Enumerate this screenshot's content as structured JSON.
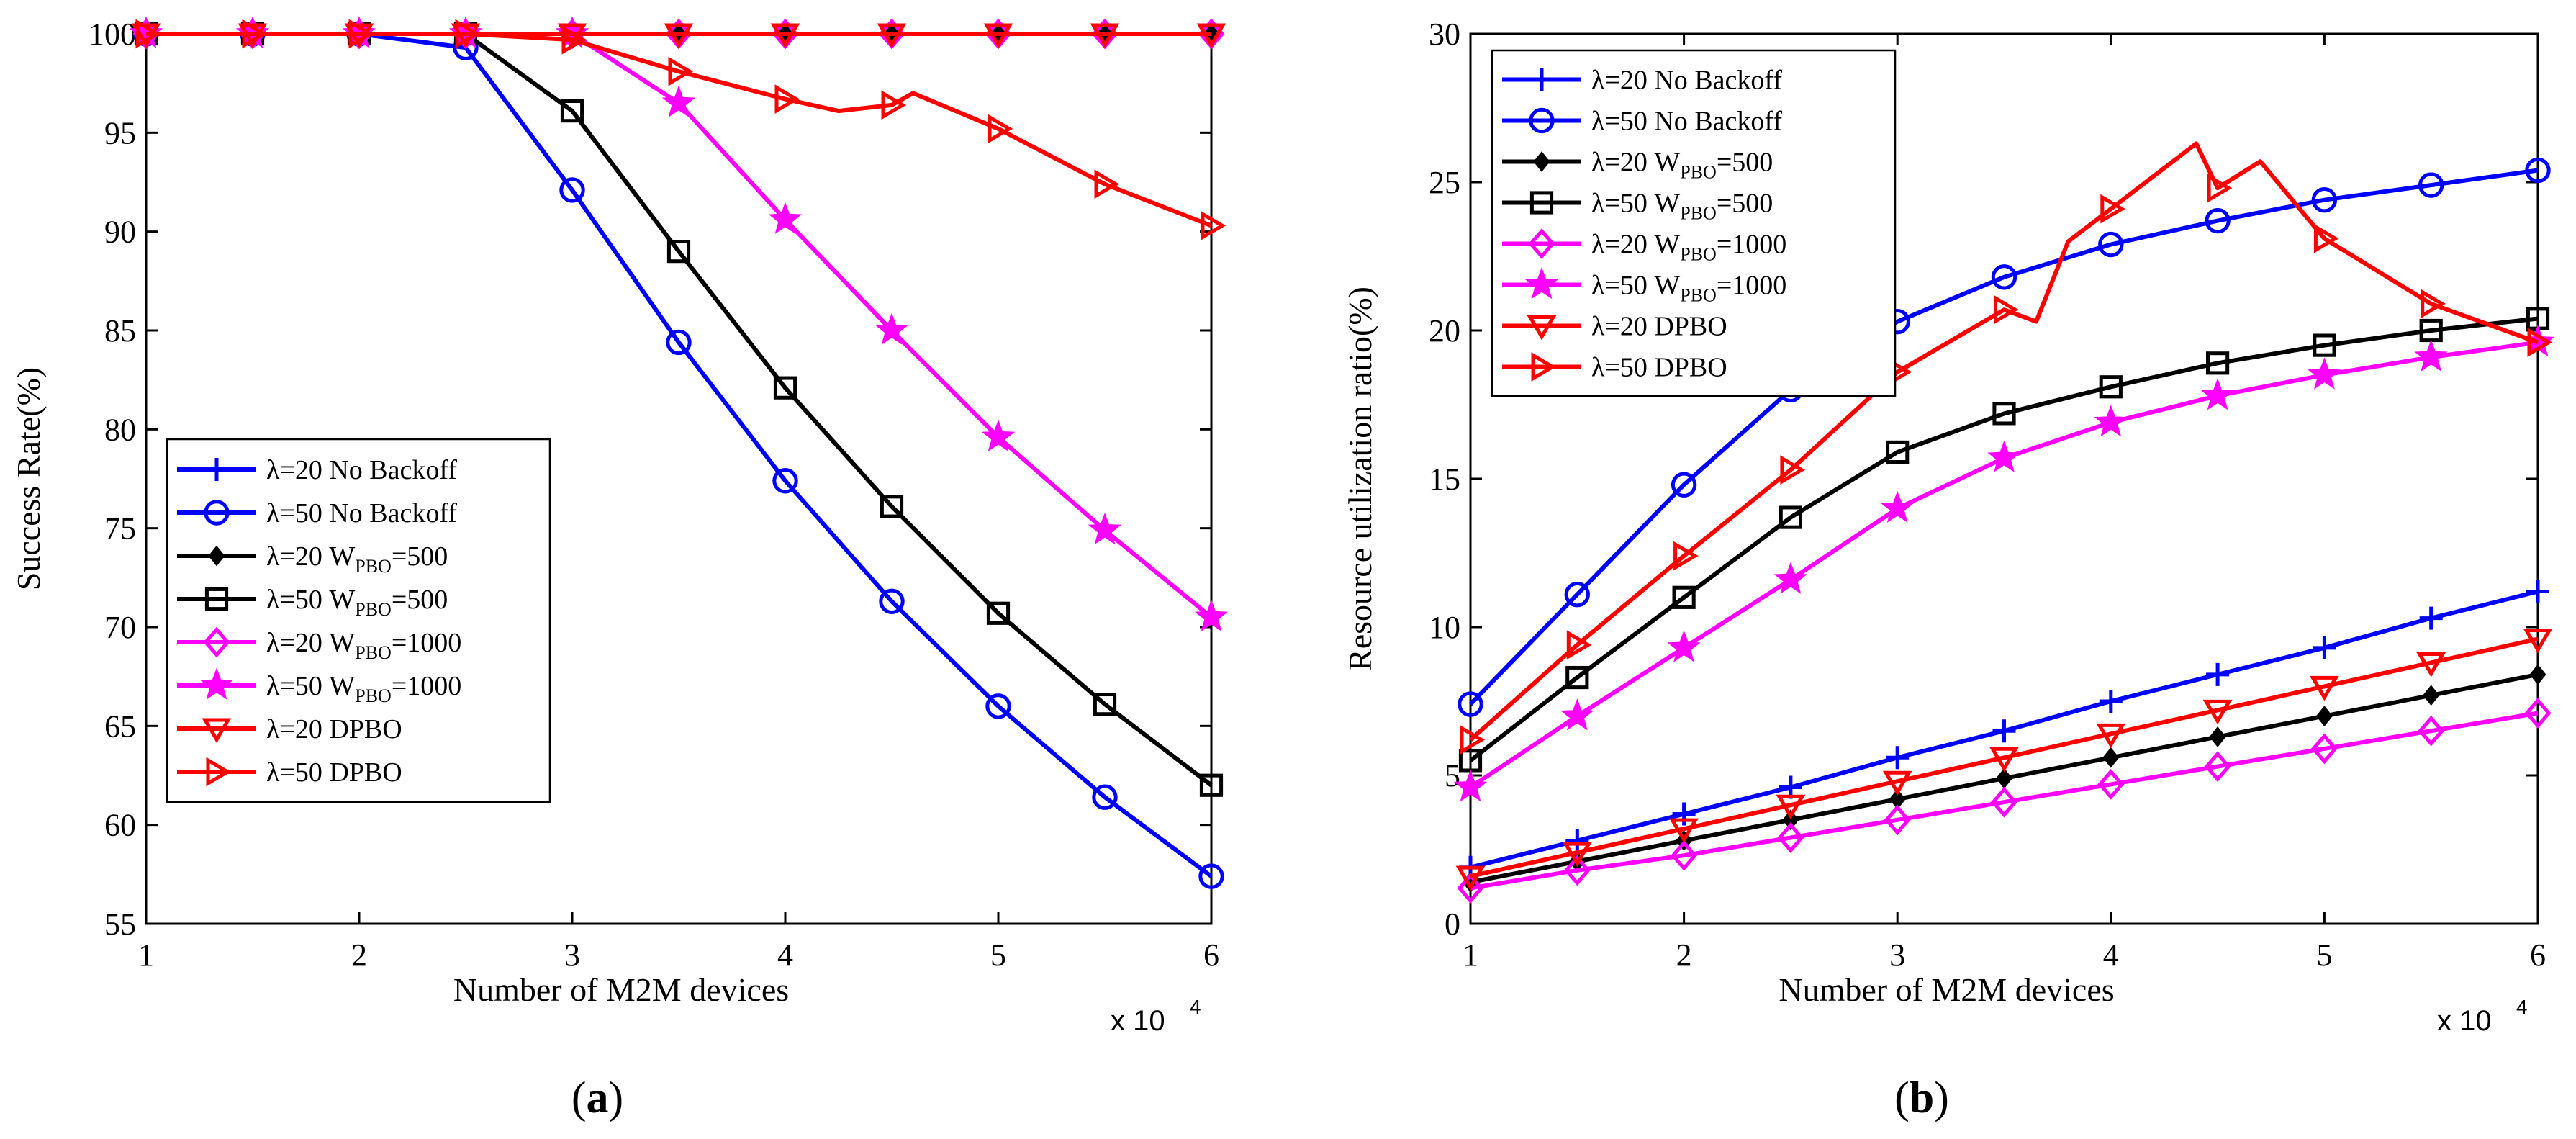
{
  "chart_data": [
    {
      "type": "line",
      "caption": "a",
      "xlabel": "Number of M2M devices",
      "ylabel": "Success Rate(%)",
      "x_multiplier": "x 10",
      "x_multiplier_exp": "4",
      "xlim": [
        1,
        6
      ],
      "ylim": [
        55,
        100
      ],
      "xticks": [
        1,
        2,
        3,
        4,
        5,
        6
      ],
      "yticks": [
        55,
        60,
        65,
        70,
        75,
        80,
        85,
        90,
        95,
        100
      ],
      "grid": false,
      "legend_position": "lower-left",
      "series": [
        {
          "name": "λ=20 No Backoff",
          "label_main": "λ=20 No Backoff",
          "label_sub": "",
          "label_tail": "",
          "color": "#0000ff",
          "marker": "plus",
          "x": [
            1,
            1.5,
            2,
            2.5,
            3,
            3.5,
            4,
            4.5,
            5,
            5.5,
            6
          ],
          "y": [
            100,
            100,
            100,
            100,
            100,
            100,
            100,
            100,
            100,
            100,
            100
          ]
        },
        {
          "name": "λ=50 No Backoff",
          "label_main": "λ=50 No Backoff",
          "label_sub": "",
          "label_tail": "",
          "color": "#0000ff",
          "marker": "circle",
          "x": [
            1,
            1.5,
            2,
            2.5,
            3,
            3.5,
            4,
            4.5,
            5,
            5.5,
            6
          ],
          "y": [
            100,
            100,
            100,
            99.3,
            92.1,
            84.4,
            77.4,
            71.3,
            66.0,
            61.4,
            57.4
          ]
        },
        {
          "name": "λ=20 WPBO=500",
          "label_main": "λ=20 W",
          "label_sub": "PBO",
          "label_tail": "=500",
          "color": "#000000",
          "marker": "diamond-filled",
          "x": [
            1,
            1.5,
            2,
            2.5,
            3,
            3.5,
            4,
            4.5,
            5,
            5.5,
            6
          ],
          "y": [
            100,
            100,
            100,
            100,
            100,
            100,
            100,
            100,
            100,
            100,
            100
          ]
        },
        {
          "name": "λ=50 WPBO=500",
          "label_main": "λ=50 W",
          "label_sub": "PBO",
          "label_tail": "=500",
          "color": "#000000",
          "marker": "square",
          "x": [
            1,
            1.5,
            2,
            2.5,
            3,
            3.5,
            4,
            4.5,
            5,
            5.5,
            6
          ],
          "y": [
            100,
            100,
            100,
            100,
            96.1,
            89.0,
            82.1,
            76.1,
            70.7,
            66.1,
            62.0
          ]
        },
        {
          "name": "λ=20 WPBO=1000",
          "label_main": "λ=20 W",
          "label_sub": "PBO",
          "label_tail": "=1000",
          "color": "#ff00ff",
          "marker": "diamond",
          "x": [
            1,
            1.5,
            2,
            2.5,
            3,
            3.5,
            4,
            4.5,
            5,
            5.5,
            6
          ],
          "y": [
            100,
            100,
            100,
            100,
            100,
            100,
            100,
            100,
            100,
            100,
            100
          ]
        },
        {
          "name": "λ=50 WPBO=1000",
          "label_main": "λ=50 W",
          "label_sub": "PBO",
          "label_tail": "=1000",
          "color": "#ff00ff",
          "marker": "star",
          "x": [
            1,
            1.5,
            2,
            2.5,
            3,
            3.5,
            4,
            4.5,
            5,
            5.5,
            6
          ],
          "y": [
            100,
            100,
            100,
            100,
            100,
            96.5,
            90.6,
            85.0,
            79.6,
            74.9,
            70.5
          ]
        },
        {
          "name": "λ=20 DPBO",
          "label_main": "λ=20 DPBO",
          "label_sub": "",
          "label_tail": "",
          "color": "#ff0000",
          "marker": "triangle-down",
          "x": [
            1,
            1.5,
            2,
            2.5,
            3,
            3.5,
            4,
            4.5,
            5,
            5.5,
            6
          ],
          "y": [
            100,
            100,
            100,
            100,
            100,
            100,
            100,
            100,
            100,
            100,
            100
          ]
        },
        {
          "name": "λ=50 DPBO",
          "label_main": "λ=50 DPBO",
          "label_sub": "",
          "label_tail": "",
          "color": "#ff0000",
          "marker": "triangle-right",
          "x": [
            1,
            1.5,
            2,
            2.5,
            3,
            3.5,
            4,
            4.25,
            4.5,
            4.6,
            5,
            5.5,
            6
          ],
          "y": [
            100,
            100,
            100,
            100,
            99.7,
            98.1,
            96.7,
            96.1,
            96.4,
            97.0,
            95.2,
            92.4,
            90.3
          ],
          "marker_indices": [
            0,
            1,
            2,
            3,
            4,
            5,
            6,
            8,
            10,
            11,
            12
          ]
        }
      ]
    },
    {
      "type": "line",
      "caption": "b",
      "xlabel": "Number of M2M devices",
      "ylabel": "Resource utilization ratio(%)",
      "x_multiplier": "x 10",
      "x_multiplier_exp": "4",
      "xlim": [
        1,
        6
      ],
      "ylim": [
        0,
        30
      ],
      "xticks": [
        1,
        2,
        3,
        4,
        5,
        6
      ],
      "yticks": [
        0,
        5,
        10,
        15,
        20,
        25,
        30
      ],
      "grid": false,
      "legend_position": "top-left",
      "series": [
        {
          "name": "λ=20 No Backoff",
          "label_main": "λ=20 No Backoff",
          "label_sub": "",
          "label_tail": "",
          "color": "#0000ff",
          "marker": "plus",
          "x": [
            1,
            1.5,
            2,
            2.5,
            3,
            3.5,
            4,
            4.5,
            5,
            5.5,
            6
          ],
          "y": [
            1.9,
            2.8,
            3.7,
            4.6,
            5.6,
            6.5,
            7.5,
            8.4,
            9.3,
            10.3,
            11.2
          ]
        },
        {
          "name": "λ=50 No Backoff",
          "label_main": "λ=50 No Backoff",
          "label_sub": "",
          "label_tail": "",
          "color": "#0000ff",
          "marker": "circle",
          "x": [
            1,
            1.5,
            2,
            2.5,
            3,
            3.5,
            4,
            4.5,
            5,
            5.5,
            6
          ],
          "y": [
            7.4,
            11.1,
            14.8,
            18.0,
            20.3,
            21.8,
            22.9,
            23.7,
            24.4,
            24.9,
            25.4
          ]
        },
        {
          "name": "λ=20 WPBO=500",
          "label_main": "λ=20 W",
          "label_sub": "PBO",
          "label_tail": "=500",
          "color": "#000000",
          "marker": "diamond-filled",
          "x": [
            1,
            1.5,
            2,
            2.5,
            3,
            3.5,
            4,
            4.5,
            5,
            5.5,
            6
          ],
          "y": [
            1.4,
            2.1,
            2.8,
            3.5,
            4.2,
            4.9,
            5.6,
            6.3,
            7.0,
            7.7,
            8.4
          ]
        },
        {
          "name": "λ=50 WPBO=500",
          "label_main": "λ=50 W",
          "label_sub": "PBO",
          "label_tail": "=500",
          "color": "#000000",
          "marker": "square",
          "x": [
            1,
            1.5,
            2,
            2.5,
            3,
            3.5,
            4,
            4.5,
            5,
            5.5,
            6
          ],
          "y": [
            5.5,
            8.3,
            11.0,
            13.7,
            15.9,
            17.2,
            18.1,
            18.9,
            19.5,
            20.0,
            20.4
          ]
        },
        {
          "name": "λ=20 WPBO=1000",
          "label_main": "λ=20 W",
          "label_sub": "PBO",
          "label_tail": "=1000",
          "color": "#ff00ff",
          "marker": "diamond",
          "x": [
            1,
            1.5,
            2,
            2.5,
            3,
            3.5,
            4,
            4.5,
            5,
            5.5,
            6
          ],
          "y": [
            1.2,
            1.8,
            2.3,
            2.9,
            3.5,
            4.1,
            4.7,
            5.3,
            5.9,
            6.5,
            7.1
          ]
        },
        {
          "name": "λ=50 WPBO=1000",
          "label_main": "λ=50 W",
          "label_sub": "PBO",
          "label_tail": "=1000",
          "color": "#ff00ff",
          "marker": "star",
          "x": [
            1,
            1.5,
            2,
            2.5,
            3,
            3.5,
            4,
            4.5,
            5,
            5.5,
            6
          ],
          "y": [
            4.6,
            7.0,
            9.3,
            11.6,
            14.0,
            15.7,
            16.9,
            17.8,
            18.5,
            19.1,
            19.6
          ]
        },
        {
          "name": "λ=20 DPBO",
          "label_main": "λ=20 DPBO",
          "label_sub": "",
          "label_tail": "",
          "color": "#ff0000",
          "marker": "triangle-down",
          "x": [
            1,
            1.5,
            2,
            2.5,
            3,
            3.5,
            4,
            4.5,
            5,
            5.5,
            6
          ],
          "y": [
            1.6,
            2.4,
            3.2,
            4.0,
            4.8,
            5.6,
            6.4,
            7.2,
            8.0,
            8.8,
            9.6
          ]
        },
        {
          "name": "λ=50 DPBO",
          "label_main": "λ=50 DPBO",
          "label_sub": "",
          "label_tail": "",
          "color": "#ff0000",
          "marker": "triangle-right",
          "x": [
            1,
            1.5,
            2,
            2.5,
            3,
            3.5,
            3.65,
            3.8,
            4,
            4.4,
            4.5,
            4.7,
            5,
            5.5,
            6
          ],
          "y": [
            6.2,
            9.4,
            12.4,
            15.3,
            18.6,
            20.7,
            20.3,
            23.0,
            24.1,
            26.3,
            24.8,
            25.7,
            23.1,
            20.9,
            19.6
          ],
          "marker_indices": [
            0,
            1,
            2,
            3,
            4,
            5,
            8,
            10,
            12,
            13,
            14
          ]
        }
      ]
    }
  ]
}
